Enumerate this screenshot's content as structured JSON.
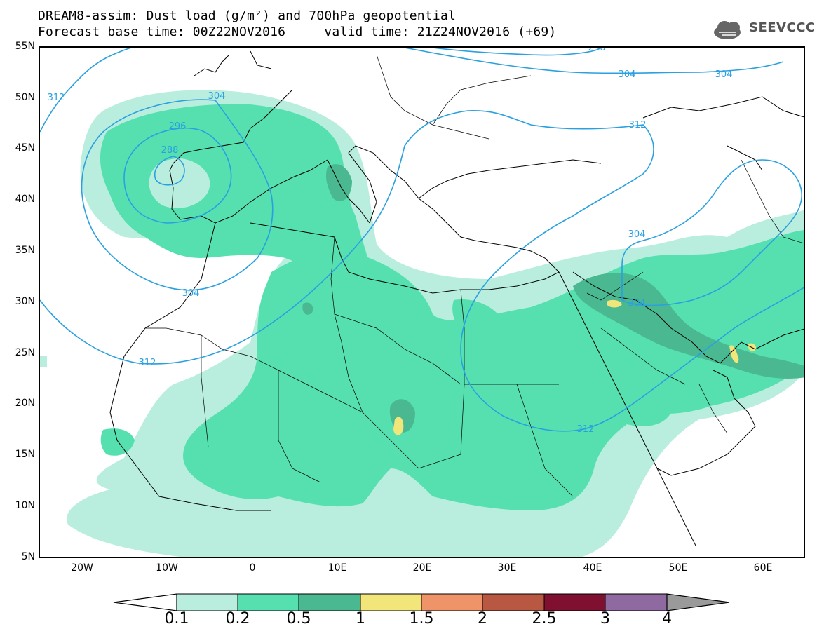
{
  "header": {
    "title_line1": "DREAM8-assim: Dust load (g/m²) and 700hPa geopotential",
    "title_line2": "Forecast base time: 00Z22NOV2016     valid time: 21Z24NOV2016 (+69)"
  },
  "logo": {
    "text": "SEEVCCC",
    "icon": "cloud-icon"
  },
  "axes": {
    "lat_labels": [
      "55N",
      "50N",
      "45N",
      "40N",
      "35N",
      "30N",
      "25N",
      "20N",
      "15N",
      "10N",
      "5N"
    ],
    "lon_labels": [
      "20W",
      "10W",
      "0",
      "10E",
      "20E",
      "30E",
      "40E",
      "50E",
      "60E"
    ]
  },
  "contours": {
    "labels": [
      "296",
      "304",
      "312",
      "288",
      "296",
      "304",
      "312",
      "304",
      "304",
      "312",
      "304",
      "304",
      "312"
    ]
  },
  "colorbar": {
    "labels": [
      "0.1",
      "0.2",
      "0.5",
      "1",
      "1.5",
      "2",
      "2.5",
      "3",
      "4"
    ],
    "colors": [
      "#b9eedf",
      "#56e0b0",
      "#4ab890",
      "#f2e67a",
      "#ef9468",
      "#b85742",
      "#7f1030",
      "#8e6aa0"
    ],
    "undershoot_color": "#ffffff",
    "overshoot_color": "#9a9a9a"
  },
  "colors": {
    "dust_light": "#b9eedf",
    "dust_medium": "#56e0b0",
    "dust_dark": "#4ab890",
    "dust_yellow": "#f2e67a",
    "contour_line": "#2aa0e0"
  }
}
